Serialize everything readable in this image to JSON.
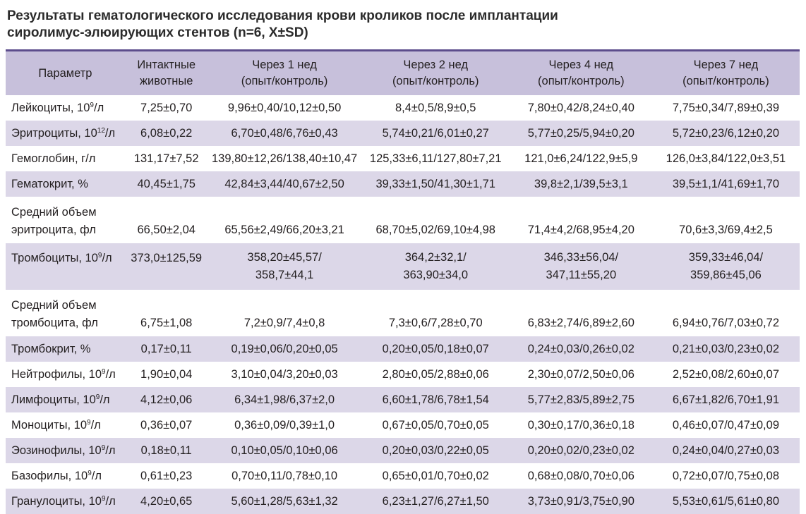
{
  "caption": {
    "line1": "Результаты гематологического исследования крови кроликов после имплантации",
    "line2": "сиролимус-элюирующих стентов (n=6, X±SD)"
  },
  "header": [
    {
      "l1": "Параметр",
      "l2": ""
    },
    {
      "l1": "Интактные",
      "l2": "животные"
    },
    {
      "l1": "Через 1 нед",
      "l2": "(опыт/контроль)"
    },
    {
      "l1": "Через 2 нед",
      "l2": "(опыт/контроль)"
    },
    {
      "l1": "Через 4 нед",
      "l2": "(опыт/контроль)"
    },
    {
      "l1": "Через 7 нед",
      "l2": "(опыт/контроль)"
    }
  ],
  "rows": [
    {
      "param": "Лейкоциты, 10",
      "exp": "9",
      "unit": "/л",
      "v": [
        "7,25±0,70",
        "9,96±0,40/10,12±0,50",
        "8,4±0,5/8,9±0,5",
        "7,80±0,42/8,24±0,40",
        "7,75±0,34/7,89±0,39"
      ]
    },
    {
      "param": "Эритроциты, 10",
      "exp": "12",
      "unit": "/л",
      "v": [
        "6,08±0,22",
        "6,70±0,48/6,76±0,43",
        "5,74±0,21/6,01±0,27",
        "5,77±0,25/5,94±0,20",
        "5,72±0,23/6,12±0,20"
      ]
    },
    {
      "param": "Гемоглобин, г/л",
      "exp": "",
      "unit": "",
      "v": [
        "131,17±7,52",
        "139,80±12,26/138,40±10,47",
        "125,33±6,11/127,80±7,21",
        "121,0±6,24/122,9±5,9",
        "126,0±3,84/122,0±3,51"
      ]
    },
    {
      "param": "Гематокрит, %",
      "exp": "",
      "unit": "",
      "v": [
        "40,45±1,75",
        "42,84±3,44/40,67±2,50",
        "39,33±1,50/41,30±1,71",
        "39,8±2,1/39,5±3,1",
        "39,5±1,1/41,69±1,70"
      ]
    },
    {
      "param": "Средний объем эритроцита, фл",
      "exp": "",
      "unit": "",
      "v": [
        "66,50±2,04",
        "65,56±2,49/66,20±3,21",
        "68,70±5,02/69,10±4,98",
        "71,4±4,2/68,95±4,20",
        "70,6±3,3/69,4±2,5"
      ]
    },
    {
      "param": "Тромбоциты, 10",
      "exp": "9",
      "unit": "/л",
      "v": [
        "373,0±125,59",
        "358,20±45,57/",
        "364,2±32,1/",
        "346,33±56,04/",
        "359,33±46,04/"
      ],
      "v2": [
        "",
        "358,7±44,1",
        "363,90±34,0",
        "347,11±55,20",
        "359,86±45,06"
      ]
    },
    {
      "param": "Средний объем тромбоцита, фл",
      "exp": "",
      "unit": "",
      "v": [
        "6,75±1,08",
        "7,2±0,9/7,4±0,8",
        "7,3±0,6/7,28±0,70",
        "6,83±2,74/6,89±2,60",
        "6,94±0,76/7,03±0,72"
      ]
    },
    {
      "param": "Тромбокрит, %",
      "exp": "",
      "unit": "",
      "v": [
        "0,17±0,11",
        "0,19±0,06/0,20±0,05",
        "0,20±0,05/0,18±0,07",
        "0,24±0,03/0,26±0,02",
        "0,21±0,03/0,23±0,02"
      ]
    },
    {
      "param": "Нейтрофилы, 10",
      "exp": "9",
      "unit": "/л",
      "v": [
        "1,90±0,04",
        "3,10±0,04/3,20±0,03",
        "2,80±0,05/2,88±0,06",
        "2,30±0,07/2,50±0,06",
        "2,52±0,08/2,60±0,07"
      ]
    },
    {
      "param": "Лимфоциты, 10",
      "exp": "9",
      "unit": "/л",
      "v": [
        "4,12±0,06",
        "6,34±1,98/6,37±2,0",
        "6,60±1,78/6,78±1,54",
        "5,77±2,83/5,89±2,75",
        "6,67±1,82/6,70±1,91"
      ]
    },
    {
      "param": "Моноциты, 10",
      "exp": "9",
      "unit": "/л",
      "v": [
        "0,36±0,07",
        "0,36±0,09/0,39±1,0",
        "0,67±0,05/0,70±0,05",
        "0,30±0,17/0,36±0,18",
        "0,46±0,07/0,47±0,09"
      ]
    },
    {
      "param": "Эозинофилы, 10",
      "exp": "9",
      "unit": "/л",
      "v": [
        "0,18±0,11",
        "0,10±0,05/0,10±0,06",
        "0,20±0,03/0,22±0,05",
        "0,20±0,02/0,23±0,02",
        "0,24±0,04/0,27±0,03"
      ]
    },
    {
      "param": "Базофилы, 10",
      "exp": "9",
      "unit": "/л",
      "v": [
        "0,61±0,23",
        "0,70±0,11/0,78±0,10",
        "0,65±0,01/0,70±0,02",
        "0,68±0,08/0,70±0,06",
        "0,72±0,07/0,75±0,08"
      ]
    },
    {
      "param": "Гранулоциты, 10",
      "exp": "9",
      "unit": "/л",
      "v": [
        "4,20±0,65",
        "5,60±1,28/5,63±1,32",
        "6,23±1,27/6,27±1,50",
        "3,73±0,91/3,75±0,90",
        "5,53±0,61/5,61±0,80"
      ]
    }
  ]
}
